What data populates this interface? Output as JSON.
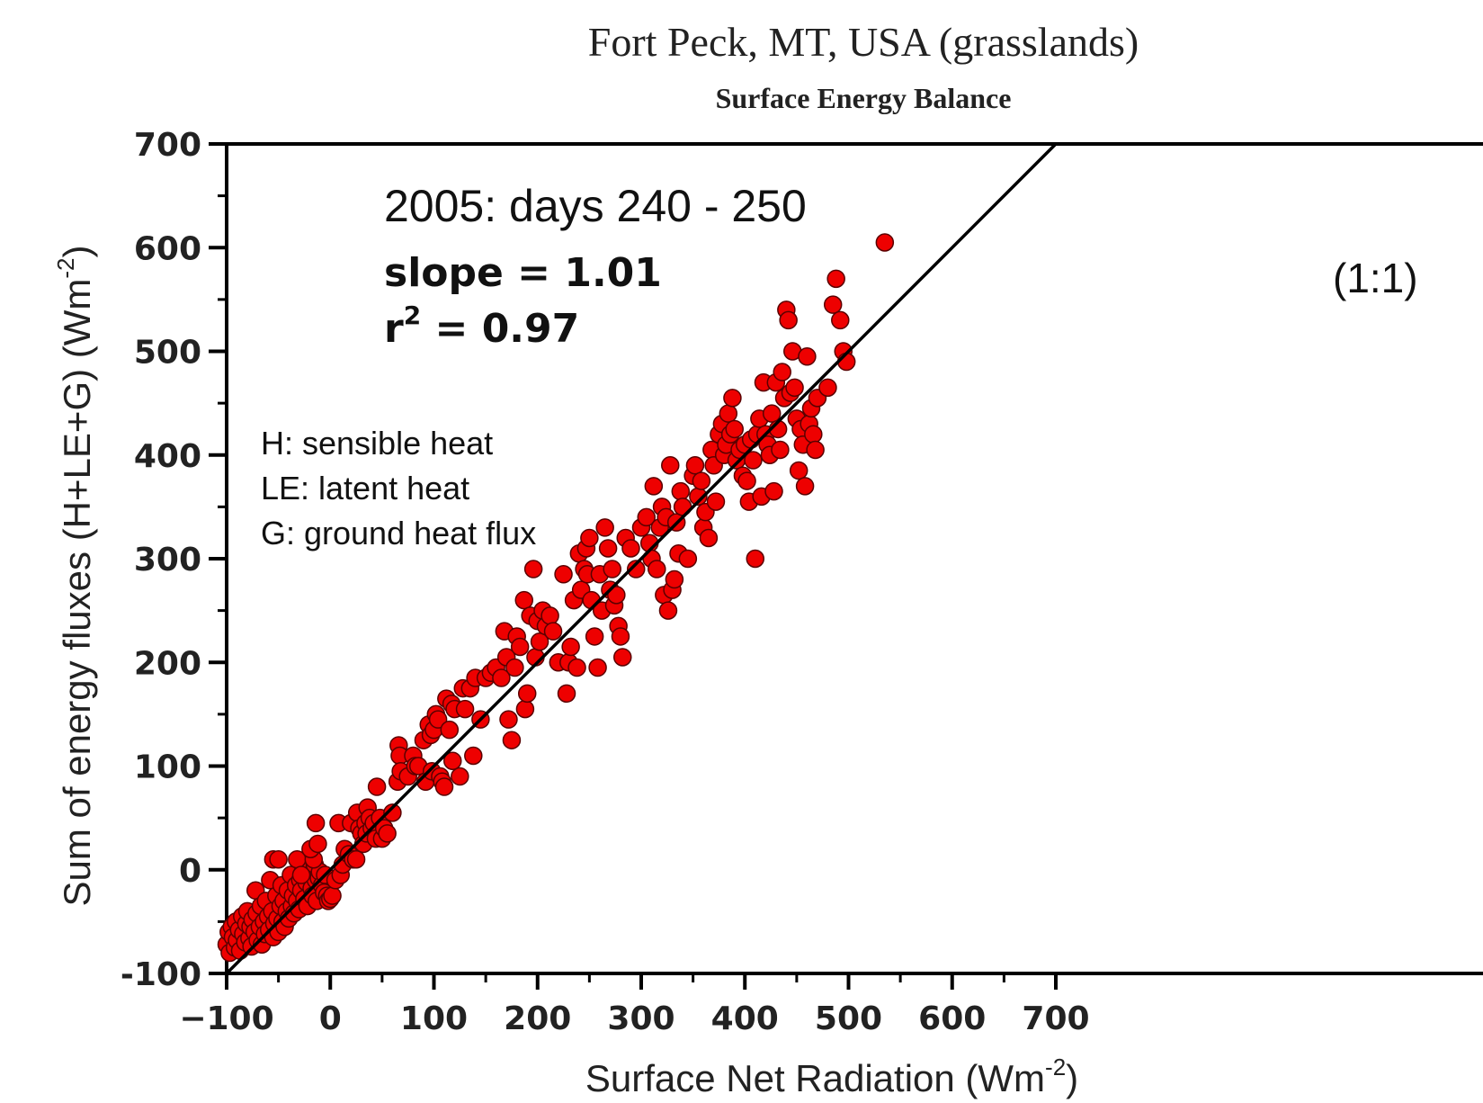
{
  "chart_data": {
    "type": "scatter",
    "title": "Fort Peck, MT, USA (grasslands)",
    "subtitle": "Surface Energy Balance",
    "xlabel": "Surface Net Radiation (Wm",
    "xlabel_sup": "-2",
    "xlabel_end": ")",
    "ylabel": "Sum of energy fluxes (H+LE+G) (Wm",
    "ylabel_sup": "-2",
    "ylabel_end": ")",
    "xlim": [
      -100,
      700
    ],
    "ylim": [
      -100,
      700
    ],
    "x_ticks": [
      "−100",
      "0",
      "100",
      "200",
      "300",
      "400",
      "500",
      "600",
      "700"
    ],
    "y_ticks": [
      "-100",
      "0",
      "100",
      "200",
      "300",
      "400",
      "500",
      "600",
      "700"
    ],
    "annotation_period": "2005: days 240 - 250",
    "annotation_slope": "slope = 1.01",
    "annotation_r2_prefix": "r",
    "annotation_r2_sup": "2",
    "annotation_r2_value": " = 0.97",
    "line_label": "(1:1)",
    "legend_lines": [
      "H: sensible heat",
      "LE: latent heat",
      "G: ground heat flux"
    ],
    "reference_line": {
      "x": [
        -100,
        700
      ],
      "y": [
        -100,
        700
      ]
    },
    "point_color": "#ee0000",
    "points": [
      [
        -100,
        -72
      ],
      [
        -98,
        -60
      ],
      [
        -97,
        -80
      ],
      [
        -95,
        -55
      ],
      [
        -94,
        -65
      ],
      [
        -92,
        -75
      ],
      [
        -91,
        -50
      ],
      [
        -90,
        -68
      ],
      [
        -88,
        -58
      ],
      [
        -87,
        -78
      ],
      [
        -85,
        -45
      ],
      [
        -84,
        -62
      ],
      [
        -82,
        -70
      ],
      [
        -81,
        -52
      ],
      [
        -80,
        -40
      ],
      [
        -78,
        -66
      ],
      [
        -77,
        -55
      ],
      [
        -76,
        -74
      ],
      [
        -75,
        -48
      ],
      [
        -73,
        -60
      ],
      [
        -72,
        -20
      ],
      [
        -71,
        -42
      ],
      [
        -70,
        -68
      ],
      [
        -68,
        -55
      ],
      [
        -67,
        -35
      ],
      [
        -66,
        -72
      ],
      [
        -64,
        -50
      ],
      [
        -63,
        -62
      ],
      [
        -62,
        -30
      ],
      [
        -60,
        -45
      ],
      [
        -59,
        -58
      ],
      [
        -58,
        -10
      ],
      [
        -56,
        -40
      ],
      [
        -55,
        -65
      ],
      [
        -54,
        -52
      ],
      [
        -52,
        -25
      ],
      [
        -51,
        -47
      ],
      [
        -50,
        -60
      ],
      [
        -48,
        -35
      ],
      [
        -47,
        -15
      ],
      [
        -46,
        -50
      ],
      [
        -45,
        -30
      ],
      [
        -44,
        -55
      ],
      [
        -42,
        -40
      ],
      [
        -41,
        -20
      ],
      [
        -40,
        -47
      ],
      [
        -38,
        -5
      ],
      [
        -37,
        -35
      ],
      [
        -36,
        -25
      ],
      [
        -35,
        -42
      ],
      [
        -33,
        -15
      ],
      [
        -32,
        -30
      ],
      [
        -30,
        -38
      ],
      [
        -29,
        -10
      ],
      [
        -28,
        -20
      ],
      [
        -26,
        0
      ],
      [
        -25,
        -28
      ],
      [
        -23,
        -12
      ],
      [
        -22,
        -35
      ],
      [
        -20,
        -5
      ],
      [
        -18,
        -18
      ],
      [
        -17,
        -25
      ],
      [
        -15,
        5
      ],
      [
        -14,
        -10
      ],
      [
        -13,
        -30
      ],
      [
        -11,
        -8
      ],
      [
        -10,
        -2
      ],
      [
        -8,
        -15
      ],
      [
        -6,
        -22
      ],
      [
        -5,
        -5
      ],
      [
        -3,
        -25
      ],
      [
        -2,
        -30
      ],
      [
        -55,
        10
      ],
      [
        -50,
        10
      ],
      [
        -32,
        10
      ],
      [
        -28,
        -5
      ],
      [
        -16,
        10
      ],
      [
        -19,
        20
      ],
      [
        -14,
        45
      ],
      [
        -12,
        25
      ],
      [
        0,
        -28
      ],
      [
        2,
        -25
      ],
      [
        5,
        -10
      ],
      [
        8,
        45
      ],
      [
        10,
        -5
      ],
      [
        12,
        5
      ],
      [
        14,
        20
      ],
      [
        18,
        15
      ],
      [
        20,
        45
      ],
      [
        22,
        10
      ],
      [
        25,
        10
      ],
      [
        26,
        55
      ],
      [
        28,
        40
      ],
      [
        30,
        35
      ],
      [
        32,
        25
      ],
      [
        34,
        45
      ],
      [
        35,
        35
      ],
      [
        36,
        60
      ],
      [
        38,
        50
      ],
      [
        40,
        40
      ],
      [
        42,
        45
      ],
      [
        44,
        30
      ],
      [
        45,
        80
      ],
      [
        48,
        50
      ],
      [
        50,
        30
      ],
      [
        52,
        40
      ],
      [
        55,
        35
      ],
      [
        60,
        55
      ],
      [
        65,
        85
      ],
      [
        66,
        120
      ],
      [
        67,
        110
      ],
      [
        68,
        95
      ],
      [
        75,
        90
      ],
      [
        80,
        110
      ],
      [
        82,
        100
      ],
      [
        85,
        100
      ],
      [
        90,
        125
      ],
      [
        92,
        85
      ],
      [
        95,
        140
      ],
      [
        97,
        130
      ],
      [
        98,
        95
      ],
      [
        100,
        135
      ],
      [
        102,
        150
      ],
      [
        104,
        145
      ],
      [
        106,
        90
      ],
      [
        108,
        85
      ],
      [
        110,
        80
      ],
      [
        112,
        165
      ],
      [
        115,
        135
      ],
      [
        117,
        160
      ],
      [
        118,
        105
      ],
      [
        120,
        155
      ],
      [
        125,
        90
      ],
      [
        128,
        175
      ],
      [
        130,
        155
      ],
      [
        135,
        175
      ],
      [
        138,
        110
      ],
      [
        140,
        185
      ],
      [
        145,
        145
      ],
      [
        150,
        185
      ],
      [
        155,
        190
      ],
      [
        160,
        195
      ],
      [
        165,
        185
      ],
      [
        168,
        230
      ],
      [
        170,
        205
      ],
      [
        172,
        145
      ],
      [
        175,
        125
      ],
      [
        178,
        195
      ],
      [
        180,
        225
      ],
      [
        183,
        215
      ],
      [
        187,
        260
      ],
      [
        188,
        155
      ],
      [
        190,
        170
      ],
      [
        193,
        245
      ],
      [
        196,
        290
      ],
      [
        198,
        205
      ],
      [
        200,
        240
      ],
      [
        202,
        220
      ],
      [
        205,
        250
      ],
      [
        208,
        235
      ],
      [
        212,
        245
      ],
      [
        215,
        230
      ],
      [
        220,
        200
      ],
      [
        225,
        285
      ],
      [
        228,
        170
      ],
      [
        230,
        200
      ],
      [
        232,
        215
      ],
      [
        235,
        260
      ],
      [
        238,
        195
      ],
      [
        240,
        305
      ],
      [
        242,
        270
      ],
      [
        245,
        290
      ],
      [
        247,
        310
      ],
      [
        248,
        285
      ],
      [
        250,
        320
      ],
      [
        252,
        260
      ],
      [
        255,
        225
      ],
      [
        258,
        195
      ],
      [
        260,
        285
      ],
      [
        262,
        250
      ],
      [
        265,
        330
      ],
      [
        268,
        310
      ],
      [
        270,
        270
      ],
      [
        272,
        290
      ],
      [
        274,
        255
      ],
      [
        276,
        265
      ],
      [
        278,
        235
      ],
      [
        280,
        225
      ],
      [
        282,
        205
      ],
      [
        285,
        320
      ],
      [
        290,
        310
      ],
      [
        295,
        290
      ],
      [
        300,
        330
      ],
      [
        305,
        340
      ],
      [
        308,
        315
      ],
      [
        310,
        300
      ],
      [
        312,
        370
      ],
      [
        315,
        290
      ],
      [
        318,
        330
      ],
      [
        320,
        350
      ],
      [
        322,
        265
      ],
      [
        324,
        340
      ],
      [
        326,
        250
      ],
      [
        328,
        390
      ],
      [
        330,
        270
      ],
      [
        332,
        280
      ],
      [
        334,
        335
      ],
      [
        336,
        305
      ],
      [
        338,
        365
      ],
      [
        340,
        350
      ],
      [
        345,
        300
      ],
      [
        350,
        380
      ],
      [
        352,
        390
      ],
      [
        355,
        360
      ],
      [
        358,
        375
      ],
      [
        360,
        330
      ],
      [
        362,
        345
      ],
      [
        365,
        320
      ],
      [
        368,
        405
      ],
      [
        370,
        390
      ],
      [
        372,
        355
      ],
      [
        375,
        420
      ],
      [
        378,
        430
      ],
      [
        380,
        400
      ],
      [
        382,
        410
      ],
      [
        384,
        440
      ],
      [
        386,
        420
      ],
      [
        388,
        455
      ],
      [
        390,
        425
      ],
      [
        392,
        395
      ],
      [
        395,
        405
      ],
      [
        398,
        380
      ],
      [
        400,
        410
      ],
      [
        402,
        375
      ],
      [
        404,
        355
      ],
      [
        406,
        415
      ],
      [
        408,
        395
      ],
      [
        410,
        300
      ],
      [
        412,
        420
      ],
      [
        414,
        435
      ],
      [
        416,
        360
      ],
      [
        418,
        470
      ],
      [
        420,
        420
      ],
      [
        422,
        410
      ],
      [
        424,
        400
      ],
      [
        426,
        440
      ],
      [
        428,
        365
      ],
      [
        430,
        470
      ],
      [
        432,
        425
      ],
      [
        434,
        405
      ],
      [
        436,
        480
      ],
      [
        438,
        455
      ],
      [
        440,
        540
      ],
      [
        442,
        530
      ],
      [
        444,
        460
      ],
      [
        446,
        500
      ],
      [
        448,
        465
      ],
      [
        450,
        435
      ],
      [
        452,
        385
      ],
      [
        454,
        425
      ],
      [
        456,
        410
      ],
      [
        458,
        370
      ],
      [
        460,
        495
      ],
      [
        462,
        430
      ],
      [
        464,
        445
      ],
      [
        466,
        420
      ],
      [
        468,
        405
      ],
      [
        470,
        455
      ],
      [
        480,
        465
      ],
      [
        485,
        545
      ],
      [
        488,
        570
      ],
      [
        492,
        530
      ],
      [
        495,
        500
      ],
      [
        498,
        490
      ],
      [
        535,
        605
      ]
    ]
  }
}
